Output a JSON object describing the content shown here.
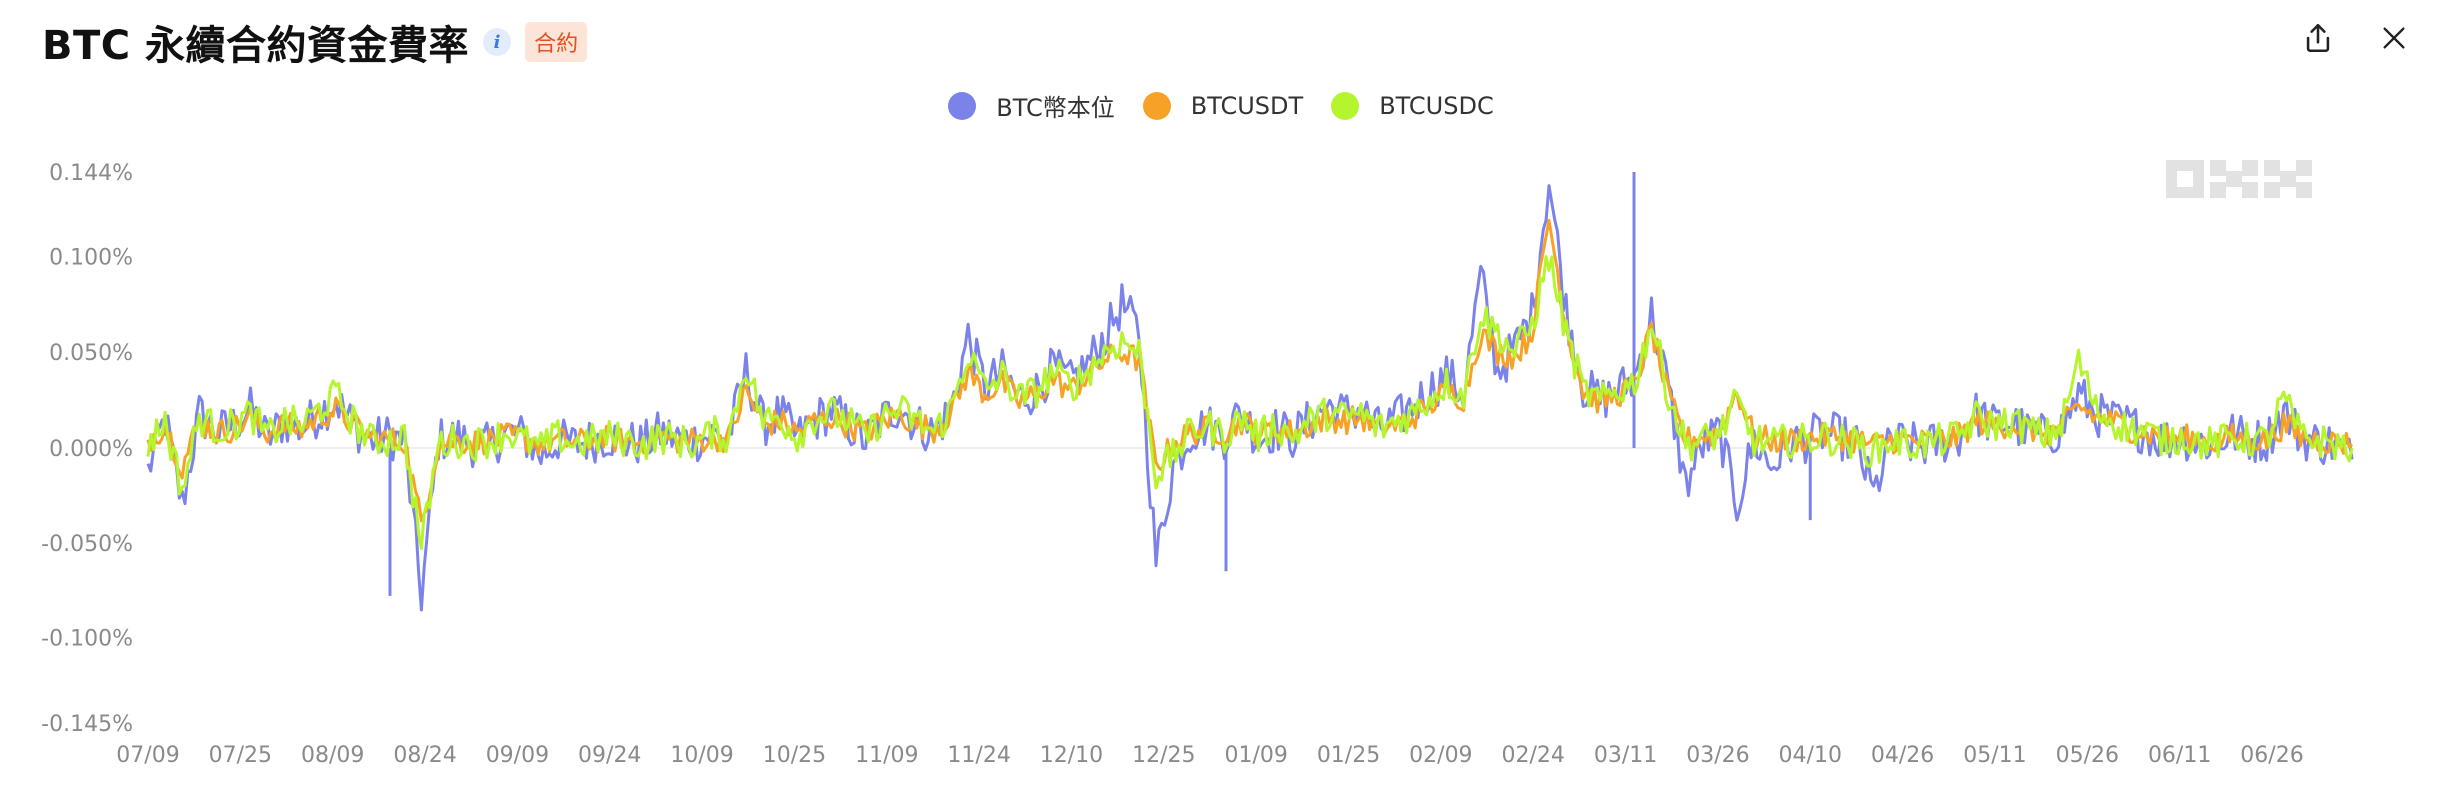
{
  "header": {
    "title": "BTC 永續合約資金費率",
    "info_icon": "info-icon",
    "badge": "合約"
  },
  "actions": [
    {
      "name": "share-button",
      "icon": "share-icon"
    },
    {
      "name": "close-button",
      "icon": "close-icon"
    }
  ],
  "watermark": "OKX",
  "chart_data": {
    "type": "line",
    "title": "BTC 永續合約資金費率",
    "y_ticks": [
      "0.144%",
      "0.100%",
      "0.050%",
      "0.000%",
      "-0.050%",
      "-0.100%",
      "-0.145%"
    ],
    "y_tick_values": [
      0.144,
      0.1,
      0.05,
      0.0,
      -0.05,
      -0.1,
      -0.145
    ],
    "ylim": [
      -0.145,
      0.144
    ],
    "x_ticks": [
      "07/09",
      "07/25",
      "08/09",
      "08/24",
      "09/09",
      "09/24",
      "10/09",
      "10/25",
      "11/09",
      "11/24",
      "12/10",
      "12/25",
      "01/09",
      "01/25",
      "02/09",
      "02/24",
      "03/11",
      "03/26",
      "04/10",
      "04/26",
      "05/11",
      "05/26",
      "06/11",
      "06/26"
    ],
    "legend_position": "top-center",
    "grid": false,
    "series": [
      {
        "name": "BTC幣本位",
        "color": "#7b83eb",
        "values": [
          -0.012,
          0.015,
          -0.03,
          0.018,
          0.008,
          0.012,
          0.02,
          0.005,
          0.014,
          0.01,
          0.018,
          0.025,
          0.012,
          0.004,
          0.006,
          0.004,
          -0.078,
          0.004,
          0.006,
          0.002,
          0.001,
          0.008,
          0.006,
          -0.004,
          0.004,
          0.002,
          0.004,
          0.006,
          0.003,
          0.002,
          0.008,
          0.005,
          0.004,
          0.007,
          0.006,
          0.04,
          0.012,
          0.018,
          0.005,
          0.014,
          0.02,
          0.012,
          0.004,
          0.015,
          0.022,
          0.012,
          0.008,
          0.02,
          0.058,
          0.032,
          0.04,
          0.026,
          0.03,
          0.042,
          0.034,
          0.044,
          0.058,
          0.075,
          0.06,
          -0.06,
          -0.01,
          0.008,
          0.012,
          0.006,
          0.02,
          0.004,
          0.01,
          0.006,
          0.014,
          0.022,
          0.018,
          0.02,
          0.01,
          0.014,
          0.022,
          0.03,
          0.038,
          0.028,
          0.09,
          0.04,
          0.052,
          0.07,
          0.14,
          0.072,
          0.032,
          0.025,
          0.03,
          0.036,
          0.07,
          0.03,
          -0.02,
          0.002,
          0.008,
          -0.03,
          0.004,
          -0.01,
          0.002,
          0.004,
          0.008,
          0.006,
          0.002,
          -0.025,
          0.004,
          0.002,
          0.001,
          0.003,
          0.006,
          0.018,
          0.012,
          0.014,
          0.008,
          0.006,
          0.01,
          0.028,
          0.018,
          0.014,
          0.012,
          0.008,
          0.004,
          0.006,
          0.003,
          0.002,
          0.008,
          0.004,
          0.004,
          0.02,
          0.006,
          0.003,
          0.002,
          -0.006
        ],
        "spikes": [
          {
            "date": "08/21",
            "value": -0.078
          },
          {
            "date": "01/05",
            "value": -0.065
          },
          {
            "date": "03/11",
            "value": 0.144
          },
          {
            "date": "04/10",
            "value": -0.038
          }
        ]
      },
      {
        "name": "BTCUSDT",
        "color": "#f7a227",
        "values": [
          0.004,
          0.012,
          -0.01,
          0.014,
          0.008,
          0.01,
          0.016,
          0.008,
          0.012,
          0.01,
          0.016,
          0.02,
          0.012,
          0.006,
          0.004,
          0.004,
          -0.04,
          0.002,
          0.004,
          0.003,
          0.004,
          0.006,
          0.005,
          0.002,
          0.004,
          0.003,
          0.004,
          0.005,
          0.003,
          0.003,
          0.006,
          0.004,
          0.004,
          0.005,
          0.005,
          0.03,
          0.012,
          0.014,
          0.008,
          0.014,
          0.016,
          0.012,
          0.008,
          0.014,
          0.018,
          0.012,
          0.01,
          0.018,
          0.04,
          0.028,
          0.034,
          0.024,
          0.028,
          0.036,
          0.03,
          0.038,
          0.046,
          0.05,
          0.046,
          -0.01,
          0.002,
          0.008,
          0.01,
          0.008,
          0.014,
          0.008,
          0.01,
          0.008,
          0.012,
          0.016,
          0.014,
          0.016,
          0.01,
          0.012,
          0.016,
          0.022,
          0.03,
          0.026,
          0.06,
          0.05,
          0.048,
          0.06,
          0.12,
          0.064,
          0.03,
          0.024,
          0.028,
          0.032,
          0.062,
          0.026,
          0.004,
          0.006,
          0.008,
          0.03,
          0.006,
          0.004,
          0.004,
          0.005,
          0.006,
          0.006,
          0.004,
          0.002,
          0.004,
          0.004,
          0.003,
          0.004,
          0.006,
          0.014,
          0.012,
          0.012,
          0.01,
          0.008,
          0.01,
          0.022,
          0.016,
          0.014,
          0.01,
          0.008,
          0.005,
          0.006,
          0.004,
          0.003,
          0.006,
          0.005,
          0.004,
          0.012,
          0.006,
          0.004,
          0.003,
          0.002
        ]
      },
      {
        "name": "BTCUSDC",
        "color": "#b4f52d",
        "values": [
          0.002,
          0.014,
          -0.022,
          0.016,
          0.01,
          0.012,
          0.018,
          0.006,
          0.014,
          0.012,
          0.02,
          0.028,
          0.014,
          0.004,
          0.004,
          0.006,
          -0.052,
          0.002,
          0.004,
          0.002,
          0.004,
          0.008,
          0.004,
          0.0,
          0.006,
          0.002,
          0.004,
          0.006,
          0.004,
          0.002,
          0.006,
          0.004,
          0.002,
          0.008,
          0.006,
          0.044,
          0.014,
          0.016,
          0.006,
          0.016,
          0.018,
          0.014,
          0.006,
          0.016,
          0.02,
          0.014,
          0.008,
          0.02,
          0.05,
          0.03,
          0.038,
          0.026,
          0.03,
          0.04,
          0.032,
          0.04,
          0.05,
          0.056,
          0.05,
          -0.014,
          -0.004,
          0.008,
          0.012,
          0.006,
          0.016,
          0.006,
          0.012,
          0.006,
          0.014,
          0.018,
          0.016,
          0.018,
          0.01,
          0.014,
          0.018,
          0.026,
          0.034,
          0.028,
          0.07,
          0.06,
          0.05,
          0.064,
          0.1,
          0.06,
          0.03,
          0.024,
          0.03,
          0.034,
          0.066,
          0.028,
          0.002,
          0.004,
          0.008,
          0.024,
          0.004,
          0.002,
          0.004,
          0.004,
          0.006,
          0.004,
          0.002,
          -0.002,
          0.004,
          0.002,
          0.002,
          0.004,
          0.006,
          0.016,
          0.012,
          0.014,
          0.01,
          0.006,
          0.012,
          0.046,
          0.02,
          0.014,
          0.01,
          0.008,
          0.004,
          0.006,
          0.003,
          0.002,
          0.006,
          0.004,
          0.004,
          0.026,
          0.006,
          0.004,
          0.002,
          0.0
        ]
      }
    ]
  }
}
